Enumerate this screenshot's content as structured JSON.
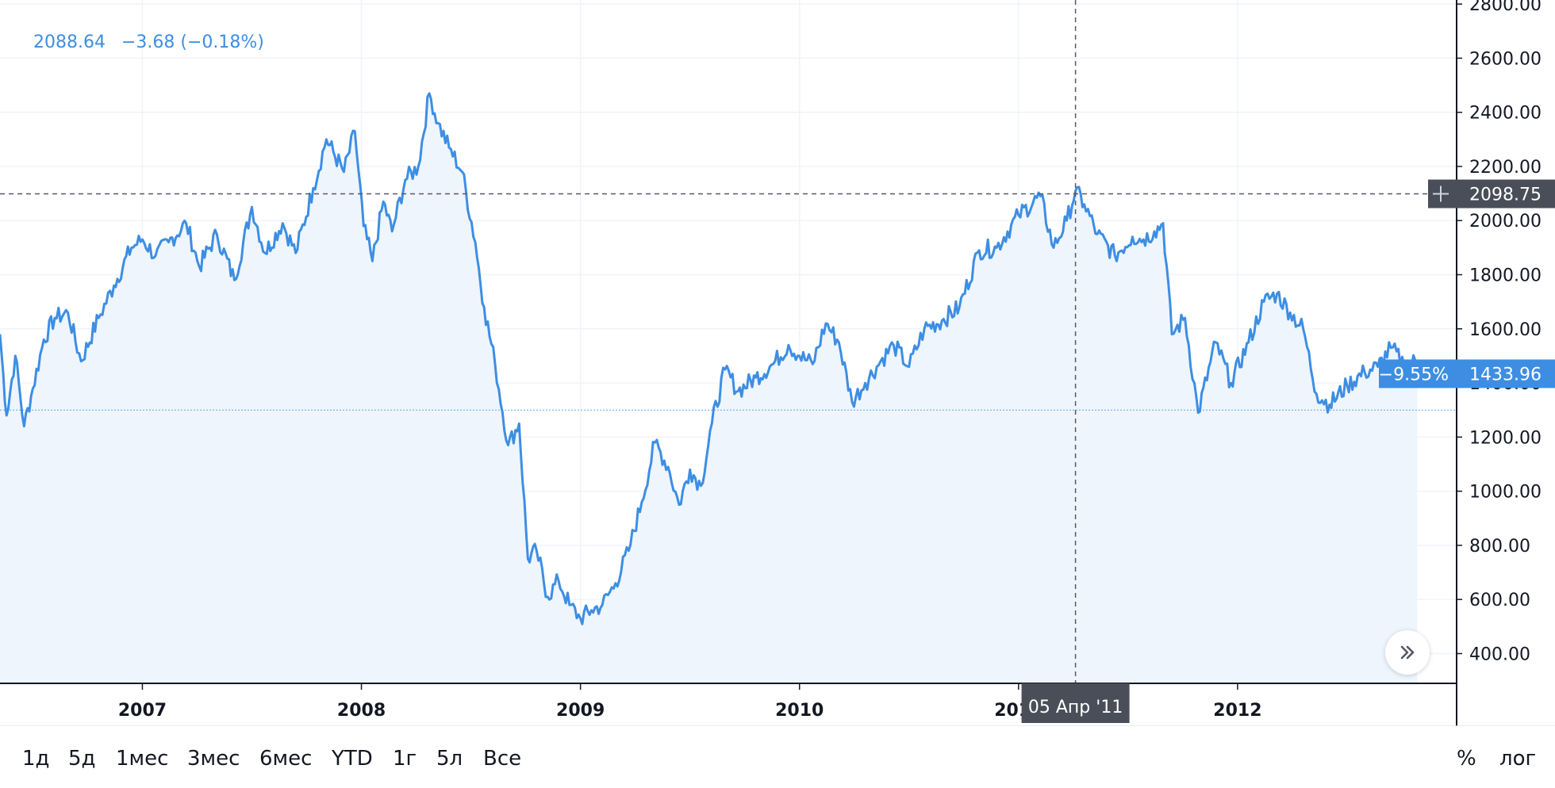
{
  "legend": {
    "last": "2088.64",
    "change": "−3.68 (−0.18%)"
  },
  "colors": {
    "line": "#3d8ee3",
    "area": "#eef5fc",
    "grid": "#f0f3fa",
    "crosshair_label_bg": "#4a4e59",
    "price_label_bg": "#3d8ee3",
    "axis_text": "#131722"
  },
  "crosshair": {
    "date_label": "05 Апр '11",
    "price_label": "2098.75",
    "date": 2011.26,
    "price": 2098.75,
    "plus_icon": "crosshair-plus-icon"
  },
  "last_price": {
    "percent_label": "−9.55%",
    "price_label": "1433.96",
    "value": 1433.96,
    "baseline": 1300
  },
  "range_buttons": [
    "1д",
    "5д",
    "1мес",
    "3мес",
    "6мес",
    "YTD",
    "1г",
    "5л",
    "Все"
  ],
  "right_buttons": {
    "percent": "%",
    "log": "лог"
  },
  "scroll_icon": "double-chevron-right-icon",
  "chart_data": {
    "type": "area",
    "x_ticks": [
      "2007",
      "2008",
      "2009",
      "2010",
      "2011",
      "2012"
    ],
    "x_tick_values": [
      2007,
      2008,
      2009,
      2010,
      2011,
      2012
    ],
    "xlim": [
      2006.35,
      2013.0
    ],
    "y_ticks": [
      "400.00",
      "600.00",
      "800.00",
      "1000.00",
      "1200.00",
      "1400.00",
      "1600.00",
      "1800.00",
      "2000.00",
      "2200.00",
      "2400.00",
      "2600.00",
      "2800.00"
    ],
    "y_tick_values": [
      400,
      600,
      800,
      1000,
      1200,
      1400,
      1600,
      1800,
      2000,
      2200,
      2400,
      2600,
      2800
    ],
    "ylim": [
      290,
      2815
    ],
    "grid": true,
    "series": [
      {
        "x": [
          2006.35,
          2006.38,
          2006.42,
          2006.46,
          2006.5,
          2006.55,
          2006.6,
          2006.66,
          2006.72,
          2006.8,
          2006.87,
          2006.95,
          2007.0,
          2007.06,
          2007.12,
          2007.2,
          2007.26,
          2007.34,
          2007.42,
          2007.5,
          2007.56,
          2007.64,
          2007.7,
          2007.78,
          2007.84,
          2007.92,
          2007.97,
          2008.01,
          2008.05,
          2008.1,
          2008.14,
          2008.2,
          2008.26,
          2008.31,
          2008.35,
          2008.4,
          2008.46,
          2008.52,
          2008.56,
          2008.61,
          2008.67,
          2008.72,
          2008.76,
          2008.8,
          2008.85,
          2008.9,
          2008.95,
          2009.0,
          2009.05,
          2009.1,
          2009.16,
          2009.22,
          2009.28,
          2009.34,
          2009.4,
          2009.45,
          2009.5,
          2009.55,
          2009.6,
          2009.66,
          2009.72,
          2009.8,
          2009.88,
          2009.95,
          2010.0,
          2010.06,
          2010.12,
          2010.18,
          2010.24,
          2010.3,
          2010.37,
          2010.43,
          2010.5,
          2010.57,
          2010.65,
          2010.73,
          2010.82,
          2010.9,
          2011.0,
          2011.1,
          2011.16,
          2011.22,
          2011.26,
          2011.3,
          2011.36,
          2011.44,
          2011.52,
          2011.57,
          2011.62,
          2011.66,
          2011.7,
          2011.76,
          2011.82,
          2011.9,
          2011.97,
          2012.05,
          2012.12,
          2012.18,
          2012.24,
          2012.3,
          2012.36,
          2012.42,
          2012.5,
          2012.58,
          2012.64,
          2012.7,
          2012.76,
          2012.82
        ],
        "values": [
          1580,
          1280,
          1500,
          1240,
          1380,
          1560,
          1640,
          1660,
          1480,
          1640,
          1760,
          1900,
          1930,
          1870,
          1920,
          1990,
          1830,
          1950,
          1780,
          2050,
          1880,
          1990,
          1880,
          2120,
          2300,
          2180,
          2330,
          1980,
          1850,
          2070,
          1960,
          2150,
          2200,
          2470,
          2360,
          2270,
          2180,
          1920,
          1680,
          1470,
          1170,
          1250,
          750,
          780,
          610,
          670,
          580,
          530,
          560,
          580,
          660,
          780,
          960,
          1180,
          1090,
          950,
          1080,
          1020,
          1250,
          1450,
          1370,
          1420,
          1470,
          1540,
          1500,
          1470,
          1620,
          1550,
          1330,
          1400,
          1480,
          1540,
          1460,
          1600,
          1630,
          1680,
          1890,
          1900,
          2020,
          2090,
          1900,
          2000,
          2110,
          2060,
          1950,
          1870,
          1940,
          1930,
          1960,
          1990,
          1580,
          1640,
          1290,
          1550,
          1400,
          1550,
          1700,
          1730,
          1660,
          1600,
          1360,
          1320,
          1390,
          1440,
          1460,
          1530,
          1470,
          1480
        ]
      }
    ]
  }
}
